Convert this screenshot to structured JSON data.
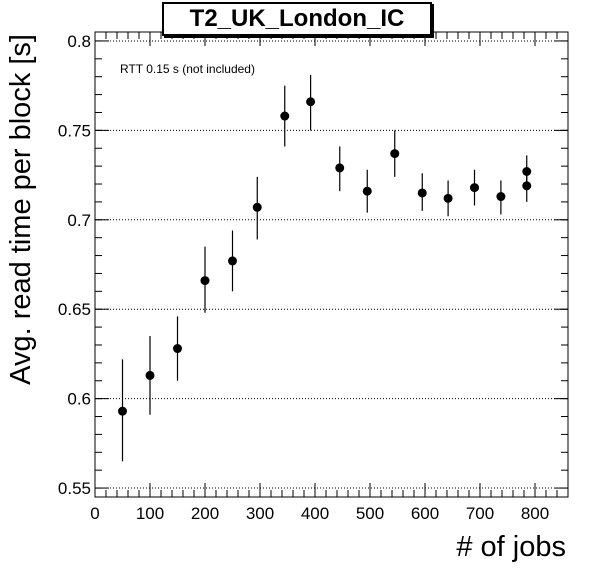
{
  "chart_data": {
    "type": "scatter",
    "title": "T2_UK_London_IC",
    "xlabel": "# of jobs",
    "ylabel": "Avg. read time per block [s]",
    "annotation": "RTT 0.15 s (not included)",
    "xlim": [
      0,
      860
    ],
    "ylim": [
      0.545,
      0.805
    ],
    "xticks": [
      0,
      100,
      200,
      300,
      400,
      500,
      600,
      700,
      800
    ],
    "yticks": [
      0.55,
      0.6,
      0.65,
      0.7,
      0.75,
      0.8
    ],
    "ytick_labels": [
      "0.55",
      "0.6",
      "0.65",
      "0.7",
      "0.75",
      "0.8"
    ],
    "grid": "horizontal dotted",
    "series": [
      {
        "points": [
          {
            "x": 50,
            "y": 0.593,
            "yerr_low": 0.565,
            "yerr_high": 0.622
          },
          {
            "x": 100,
            "y": 0.613,
            "yerr_low": 0.591,
            "yerr_high": 0.635
          },
          {
            "x": 150,
            "y": 0.628,
            "yerr_low": 0.61,
            "yerr_high": 0.646
          },
          {
            "x": 200,
            "y": 0.666,
            "yerr_low": 0.648,
            "yerr_high": 0.685
          },
          {
            "x": 250,
            "y": 0.677,
            "yerr_low": 0.66,
            "yerr_high": 0.694
          },
          {
            "x": 295,
            "y": 0.707,
            "yerr_low": 0.689,
            "yerr_high": 0.724
          },
          {
            "x": 345,
            "y": 0.758,
            "yerr_low": 0.741,
            "yerr_high": 0.775
          },
          {
            "x": 392,
            "y": 0.766,
            "yerr_low": 0.75,
            "yerr_high": 0.781
          },
          {
            "x": 445,
            "y": 0.729,
            "yerr_low": 0.716,
            "yerr_high": 0.741
          },
          {
            "x": 495,
            "y": 0.716,
            "yerr_low": 0.704,
            "yerr_high": 0.728
          },
          {
            "x": 545,
            "y": 0.737,
            "yerr_low": 0.724,
            "yerr_high": 0.75
          },
          {
            "x": 595,
            "y": 0.715,
            "yerr_low": 0.705,
            "yerr_high": 0.726
          },
          {
            "x": 642,
            "y": 0.712,
            "yerr_low": 0.702,
            "yerr_high": 0.722
          },
          {
            "x": 690,
            "y": 0.718,
            "yerr_low": 0.708,
            "yerr_high": 0.728
          },
          {
            "x": 738,
            "y": 0.713,
            "yerr_low": 0.703,
            "yerr_high": 0.722
          },
          {
            "x": 785,
            "y": 0.727,
            "yerr_low": 0.717,
            "yerr_high": 0.736
          },
          {
            "x": 785,
            "y": 0.719,
            "yerr_low": 0.71,
            "yerr_high": 0.729
          }
        ]
      }
    ]
  }
}
